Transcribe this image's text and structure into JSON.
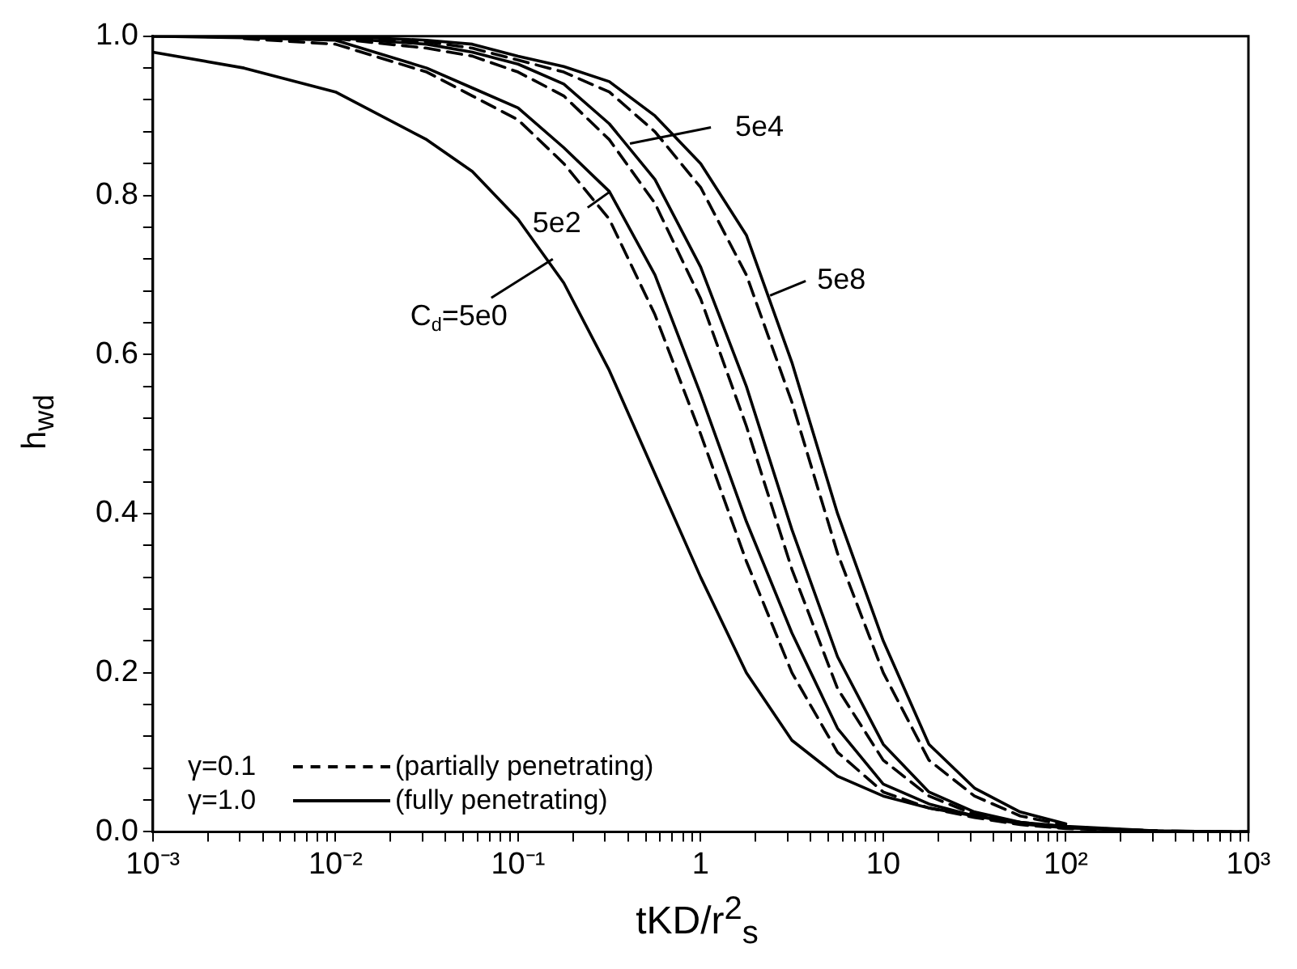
{
  "chart_data": {
    "type": "line",
    "xlabel": "tKD/r$^{2}$$_{s}$",
    "ylabel": "h$_{wd}$",
    "log": "x",
    "grid": false,
    "legend": false,
    "marker": "none",
    "x": [
      0.001,
      0.00316,
      0.01,
      0.0316,
      0.0562,
      0.1,
      0.178,
      0.316,
      0.562,
      1,
      1.78,
      3.16,
      5.62,
      10,
      17.8,
      31.6,
      56.2,
      100,
      316,
      1000
    ],
    "xlim": [
      0.001,
      1000
    ],
    "xticks": [
      {
        "value": 0.001,
        "label": "10⁻³"
      },
      {
        "value": 0.002,
        "label": null
      },
      {
        "value": 0.003,
        "label": null
      },
      {
        "value": 0.004,
        "label": null
      },
      {
        "value": 0.005,
        "label": null
      },
      {
        "value": 0.006,
        "label": null
      },
      {
        "value": 0.007,
        "label": null
      },
      {
        "value": 0.008,
        "label": null
      },
      {
        "value": 0.009,
        "label": null
      },
      {
        "value": 0.01,
        "label": "10⁻²"
      },
      {
        "value": 0.02,
        "label": null
      },
      {
        "value": 0.03,
        "label": null
      },
      {
        "value": 0.04,
        "label": null
      },
      {
        "value": 0.05,
        "label": null
      },
      {
        "value": 0.06,
        "label": null
      },
      {
        "value": 0.07,
        "label": null
      },
      {
        "value": 0.08,
        "label": null
      },
      {
        "value": 0.09,
        "label": null
      },
      {
        "value": 0.1,
        "label": "10⁻¹"
      },
      {
        "value": 0.2,
        "label": null
      },
      {
        "value": 0.3,
        "label": null
      },
      {
        "value": 0.4,
        "label": null
      },
      {
        "value": 0.5,
        "label": null
      },
      {
        "value": 0.6,
        "label": null
      },
      {
        "value": 0.7,
        "label": null
      },
      {
        "value": 0.8,
        "label": null
      },
      {
        "value": 0.9,
        "label": null
      },
      1,
      {
        "value": 2,
        "label": null
      },
      {
        "value": 3,
        "label": null
      },
      {
        "value": 4,
        "label": null
      },
      {
        "value": 5,
        "label": null
      },
      {
        "value": 6,
        "label": null
      },
      {
        "value": 7,
        "label": null
      },
      {
        "value": 8,
        "label": null
      },
      {
        "value": 9,
        "label": null
      },
      10,
      {
        "value": 20,
        "label": null
      },
      {
        "value": 30,
        "label": null
      },
      {
        "value": 40,
        "label": null
      },
      {
        "value": 50,
        "label": null
      },
      {
        "value": 60,
        "label": null
      },
      {
        "value": 70,
        "label": null
      },
      {
        "value": 80,
        "label": null
      },
      {
        "value": 90,
        "label": null
      },
      {
        "value": 100,
        "label": "10²"
      },
      {
        "value": 200,
        "label": null
      },
      {
        "value": 300,
        "label": null
      },
      {
        "value": 400,
        "label": null
      },
      {
        "value": 500,
        "label": null
      },
      {
        "value": 600,
        "label": null
      },
      {
        "value": 700,
        "label": null
      },
      {
        "value": 800,
        "label": null
      },
      {
        "value": 900,
        "label": null
      },
      {
        "value": 1000,
        "label": "10³"
      }
    ],
    "ylim": [
      0,
      1
    ],
    "yticks": [
      {
        "value": 0,
        "label": "0.0"
      },
      {
        "value": 0.04,
        "label": null
      },
      {
        "value": 0.08,
        "label": null
      },
      {
        "value": 0.12,
        "label": null
      },
      {
        "value": 0.16,
        "label": null
      },
      {
        "value": 0.2,
        "label": "0.2"
      },
      {
        "value": 0.24,
        "label": null
      },
      {
        "value": 0.28,
        "label": null
      },
      {
        "value": 0.32,
        "label": null
      },
      {
        "value": 0.36,
        "label": null
      },
      {
        "value": 0.4,
        "label": "0.4"
      },
      {
        "value": 0.44,
        "label": null
      },
      {
        "value": 0.48,
        "label": null
      },
      {
        "value": 0.52,
        "label": null
      },
      {
        "value": 0.56,
        "label": null
      },
      {
        "value": 0.6,
        "label": "0.6"
      },
      {
        "value": 0.64,
        "label": null
      },
      {
        "value": 0.68,
        "label": null
      },
      {
        "value": 0.72,
        "label": null
      },
      {
        "value": 0.76,
        "label": null
      },
      {
        "value": 0.8,
        "label": "0.8"
      },
      {
        "value": 0.84,
        "label": null
      },
      {
        "value": 0.88,
        "label": null
      },
      {
        "value": 0.92,
        "label": null
      },
      {
        "value": 0.96,
        "label": null
      },
      {
        "value": 1,
        "label": "1.0"
      }
    ],
    "series": [
      {
        "color": "#000000",
        "line_style": "solid",
        "values": [
          0.98,
          0.96,
          0.93,
          0.87,
          0.83,
          0.77,
          0.69,
          0.58,
          0.45,
          0.32,
          0.2,
          0.115,
          0.07,
          0.045,
          0.03,
          0.02,
          0.012,
          0.005,
          0.001,
          0
        ]
      },
      {
        "color": "#000000",
        "line_style": "dashed",
        "values": [
          null,
          0.997,
          0.99,
          0.955,
          0.925,
          0.895,
          0.84,
          0.77,
          0.65,
          0.5,
          0.34,
          0.2,
          0.1,
          0.05,
          0.03,
          0.018,
          0.009,
          0.004,
          0.001,
          0
        ]
      },
      {
        "color": "#000000",
        "line_style": "solid",
        "values": [
          1,
          0.998,
          0.995,
          0.96,
          0.935,
          0.91,
          0.86,
          0.805,
          0.7,
          0.55,
          0.39,
          0.25,
          0.13,
          0.06,
          0.035,
          0.02,
          0.01,
          0.005,
          0.001,
          0
        ]
      },
      {
        "color": "#000000",
        "line_style": "dashed",
        "values": [
          null,
          1,
          0.997,
          0.985,
          0.975,
          0.955,
          0.925,
          0.87,
          0.79,
          0.67,
          0.51,
          0.33,
          0.18,
          0.09,
          0.045,
          0.022,
          0.011,
          0.006,
          0.001,
          null
        ]
      },
      {
        "color": "#000000",
        "line_style": "solid",
        "values": [
          1,
          1,
          0.998,
          0.99,
          0.98,
          0.965,
          0.94,
          0.89,
          0.82,
          0.71,
          0.56,
          0.38,
          0.22,
          0.11,
          0.05,
          0.025,
          0.012,
          0.007,
          0.001,
          null
        ]
      },
      {
        "color": "#000000",
        "line_style": "dashed",
        "values": [
          null,
          1,
          1,
          0.993,
          0.985,
          0.97,
          0.955,
          0.93,
          0.88,
          0.81,
          0.7,
          0.54,
          0.35,
          0.2,
          0.09,
          0.045,
          0.02,
          0.008,
          null,
          null
        ]
      },
      {
        "color": "#000000",
        "line_style": "solid",
        "values": [
          1,
          1,
          1,
          0.995,
          0.99,
          0.975,
          0.962,
          0.943,
          0.9,
          0.84,
          0.75,
          0.59,
          0.4,
          0.24,
          0.11,
          0.055,
          0.025,
          0.01,
          null,
          null
        ]
      }
    ],
    "annotations": [
      {
        "text": "C$_{d}$=5e0",
        "x": 0.155,
        "y": 0.72
      },
      {
        "text": "5e2",
        "x": 0.32,
        "y": 0.805
      },
      {
        "text": "5e4",
        "x": 0.41,
        "y": 0.865
      },
      {
        "text": "5e8",
        "x": 2.4,
        "y": 0.674
      },
      "γ=0.1",
      "(partially penetrating)",
      "γ=1.0",
      "(fully penetrating)"
    ]
  }
}
